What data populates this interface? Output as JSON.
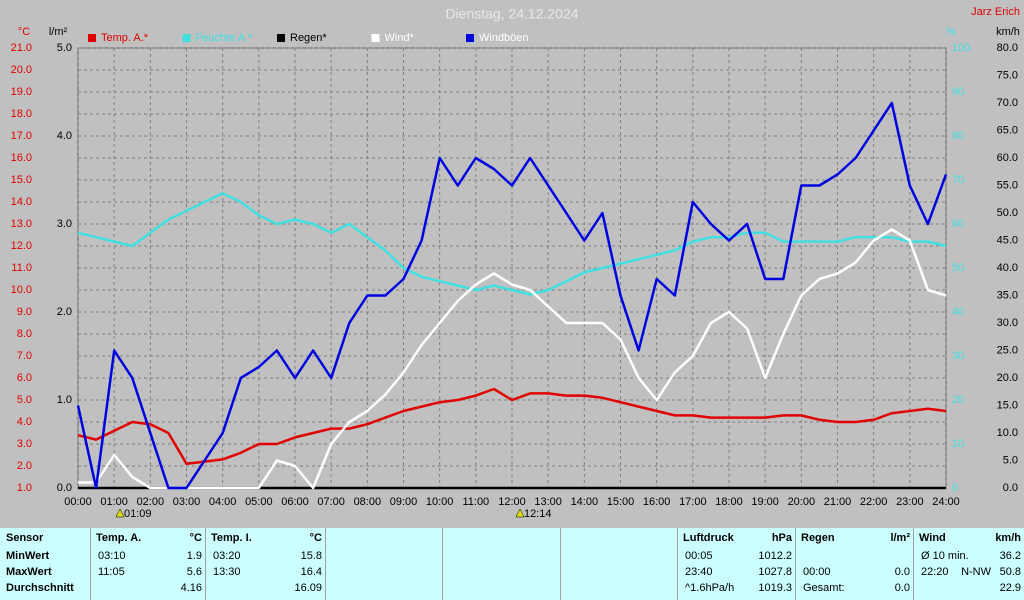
{
  "chart_data": {
    "type": "line",
    "title": "Dienstag, 24.12.2024",
    "author": "Jarz Erich",
    "x": [
      0,
      0.5,
      1,
      1.5,
      2,
      2.5,
      3,
      3.5,
      4,
      4.5,
      5,
      5.5,
      6,
      6.5,
      7,
      7.5,
      8,
      8.5,
      9,
      9.5,
      10,
      10.5,
      11,
      11.5,
      12,
      12.5,
      13,
      13.5,
      14,
      14.5,
      15,
      15.5,
      16,
      16.5,
      17,
      17.5,
      18,
      18.5,
      19,
      19.5,
      20,
      20.5,
      21,
      21.5,
      22,
      22.5,
      23,
      23.5,
      24
    ],
    "xlim": [
      0,
      24
    ],
    "xticks": [
      {
        "value": 0,
        "label": "00:00"
      },
      {
        "value": 1,
        "label": "01:00"
      },
      {
        "value": 2,
        "label": "02:00"
      },
      {
        "value": 3,
        "label": "03:00"
      },
      {
        "value": 4,
        "label": "04:00"
      },
      {
        "value": 5,
        "label": "05:00"
      },
      {
        "value": 6,
        "label": "06:00"
      },
      {
        "value": 7,
        "label": "07:00"
      },
      {
        "value": 8,
        "label": "08:00"
      },
      {
        "value": 9,
        "label": "09:00"
      },
      {
        "value": 10,
        "label": "10:00"
      },
      {
        "value": 11,
        "label": "11:00"
      },
      {
        "value": 12,
        "label": "12:00"
      },
      {
        "value": 13,
        "label": "13:00"
      },
      {
        "value": 14,
        "label": "14:00"
      },
      {
        "value": 15,
        "label": "15:00"
      },
      {
        "value": 16,
        "label": "16:00"
      },
      {
        "value": 17,
        "label": "17:00"
      },
      {
        "value": 18,
        "label": "18:00"
      },
      {
        "value": 19,
        "label": "19:00"
      },
      {
        "value": 20,
        "label": "20:00"
      },
      {
        "value": 21,
        "label": "21:00"
      },
      {
        "value": 22,
        "label": "22:00"
      },
      {
        "value": 23,
        "label": "23:00"
      },
      {
        "value": 24,
        "label": "24:00"
      }
    ],
    "ylabel": "°C",
    "ylim": [
      1,
      21
    ],
    "yticks": [
      {
        "value": 1,
        "label": "1.0"
      },
      {
        "value": 2,
        "label": "2.0"
      },
      {
        "value": 3,
        "label": "3.0"
      },
      {
        "value": 4,
        "label": "4.0"
      },
      {
        "value": 5,
        "label": "5.0"
      },
      {
        "value": 6,
        "label": "6.0"
      },
      {
        "value": 7,
        "label": "7.0"
      },
      {
        "value": 8,
        "label": "8.0"
      },
      {
        "value": 9,
        "label": "9.0"
      },
      {
        "value": 10,
        "label": "10.0"
      },
      {
        "value": 11,
        "label": "11.0"
      },
      {
        "value": 12,
        "label": "12.0"
      },
      {
        "value": 13,
        "label": "13.0"
      },
      {
        "value": 14,
        "label": "14.0"
      },
      {
        "value": 15,
        "label": "15.0"
      },
      {
        "value": 16,
        "label": "16.0"
      },
      {
        "value": 17,
        "label": "17.0"
      },
      {
        "value": 18,
        "label": "18.0"
      },
      {
        "value": 19,
        "label": "19.0"
      },
      {
        "value": 20,
        "label": "20.0"
      },
      {
        "value": 21,
        "label": "21.0"
      }
    ],
    "y2label": "l/m²",
    "y2lim": [
      0,
      5
    ],
    "y2ticks": [
      {
        "value": 0,
        "label": "0.0"
      },
      {
        "value": 1,
        "label": "1.0"
      },
      {
        "value": 2,
        "label": "2.0"
      },
      {
        "value": 3,
        "label": "3.0"
      },
      {
        "value": 4,
        "label": "4.0"
      },
      {
        "value": 5,
        "label": "5.0"
      }
    ],
    "y3label": "%",
    "y3lim": [
      0,
      100
    ],
    "y3ticks": [
      0,
      10,
      20,
      30,
      40,
      50,
      60,
      70,
      80,
      90,
      100
    ],
    "y4label": "km/h",
    "y4lim": [
      0,
      80
    ],
    "y4ticks": [
      {
        "value": 0,
        "label": "0.0"
      },
      {
        "value": 5,
        "label": "5.0"
      },
      {
        "value": 10,
        "label": "10.0"
      },
      {
        "value": 15,
        "label": "15.0"
      },
      {
        "value": 20,
        "label": "20.0"
      },
      {
        "value": 25,
        "label": "25.0"
      },
      {
        "value": 30,
        "label": "30.0"
      },
      {
        "value": 35,
        "label": "35.0"
      },
      {
        "value": 40,
        "label": "40.0"
      },
      {
        "value": 45,
        "label": "45.0"
      },
      {
        "value": 50,
        "label": "50.0"
      },
      {
        "value": 55,
        "label": "55.0"
      },
      {
        "value": 60,
        "label": "60.0"
      },
      {
        "value": 65,
        "label": "65.0"
      },
      {
        "value": 70,
        "label": "70.0"
      },
      {
        "value": 75,
        "label": "75.0"
      },
      {
        "value": 80,
        "label": "80.0"
      }
    ],
    "grid": true,
    "annotations": [
      "01:09",
      "12:14"
    ],
    "series": [
      {
        "name": "Temp. A.*",
        "color": "#e00000",
        "axis": "y",
        "values": [
          3.4,
          3.2,
          3.6,
          4.0,
          3.9,
          3.5,
          2.1,
          2.2,
          2.3,
          2.6,
          3.0,
          3.0,
          3.3,
          3.5,
          3.7,
          3.7,
          3.9,
          4.2,
          4.5,
          4.7,
          4.9,
          5.0,
          5.2,
          5.5,
          5.0,
          5.3,
          5.3,
          5.2,
          5.2,
          5.1,
          4.9,
          4.7,
          4.5,
          4.3,
          4.3,
          4.2,
          4.2,
          4.2,
          4.2,
          4.3,
          4.3,
          4.1,
          4.0,
          4.0,
          4.1,
          4.4,
          4.5,
          4.6,
          4.5
        ]
      },
      {
        "name": "Feuchte A.*",
        "color": "#40e0e0",
        "axis": "y3",
        "values": [
          58,
          57,
          56,
          55,
          58,
          61,
          63,
          65,
          67,
          65,
          62,
          60,
          61,
          60,
          58,
          60,
          57,
          54,
          50,
          48,
          47,
          46,
          45,
          46,
          45,
          44,
          45,
          47,
          49,
          50,
          51,
          52,
          53,
          54,
          56,
          57,
          57,
          58,
          58,
          56,
          56,
          56,
          56,
          57,
          57,
          57,
          56,
          56,
          55
        ]
      },
      {
        "name": "Regen*",
        "color": "#000000",
        "axis": "y2",
        "values": [
          0,
          0,
          0,
          0,
          0,
          0,
          0,
          0,
          0,
          0,
          0,
          0,
          0,
          0,
          0,
          0,
          0,
          0,
          0,
          0,
          0,
          0,
          0,
          0,
          0,
          0,
          0,
          0,
          0,
          0,
          0,
          0,
          0,
          0,
          0,
          0,
          0,
          0,
          0,
          0,
          0,
          0,
          0,
          0,
          0,
          0,
          0,
          0,
          0
        ]
      },
      {
        "name": "Wind*",
        "color": "#ffffff",
        "axis": "y4",
        "values": [
          1,
          1,
          6,
          2,
          0,
          0,
          0,
          0,
          0,
          0,
          0,
          5,
          4,
          0,
          8,
          12,
          14,
          17,
          21,
          26,
          30,
          34,
          37,
          39,
          37,
          36,
          33,
          30,
          30,
          30,
          27,
          20,
          16,
          21,
          24,
          30,
          32,
          29,
          20,
          28,
          35,
          38,
          39,
          41,
          45,
          47,
          45,
          36,
          35
        ]
      },
      {
        "name": "Windböen",
        "color": "#0000e0",
        "axis": "y4",
        "values": [
          15,
          0,
          25,
          20,
          10,
          0,
          0,
          5,
          10,
          20,
          22,
          25,
          20,
          25,
          20,
          30,
          35,
          35,
          38,
          45,
          60,
          55,
          60,
          58,
          55,
          60,
          55,
          50,
          45,
          50,
          35,
          25,
          38,
          35,
          52,
          48,
          45,
          48,
          38,
          38,
          55,
          55,
          57,
          60,
          65,
          70,
          55,
          48,
          57
        ]
      }
    ]
  },
  "table": {
    "row_header": "Sensor",
    "row_labels": [
      "MinWert",
      "MaxWert",
      "Durchschnitt"
    ],
    "columns": [
      {
        "title": "Temp. A.",
        "unit": "°C",
        "cells": [
          [
            "03:10",
            "1.9"
          ],
          [
            "11:05",
            "5.6"
          ],
          [
            "4.16"
          ]
        ]
      },
      {
        "title": "Temp. I.",
        "unit": "°C",
        "cells": [
          [
            "03:20",
            "15.8"
          ],
          [
            "13:30",
            "16.4"
          ],
          [
            "16.09"
          ]
        ]
      },
      {
        "title": "Luftdruck",
        "unit": "hPa",
        "cells": [
          [
            "00:05",
            "1012.2"
          ],
          [
            "23:40",
            "1027.8"
          ],
          [
            "^1.6hPa/h",
            "1019.3"
          ]
        ]
      },
      {
        "title": "Regen",
        "unit": "l/m²",
        "cells": [
          null,
          [
            "00:00",
            "0.0"
          ],
          [
            "Gesamt:",
            "0.0"
          ]
        ]
      },
      {
        "title": "Wind",
        "unit": "km/h",
        "cells": [
          [
            "Ø 10 min.",
            "36.2"
          ],
          [
            "22:20",
            "N-NW",
            "50.8"
          ],
          [
            "22.9"
          ]
        ]
      }
    ]
  }
}
